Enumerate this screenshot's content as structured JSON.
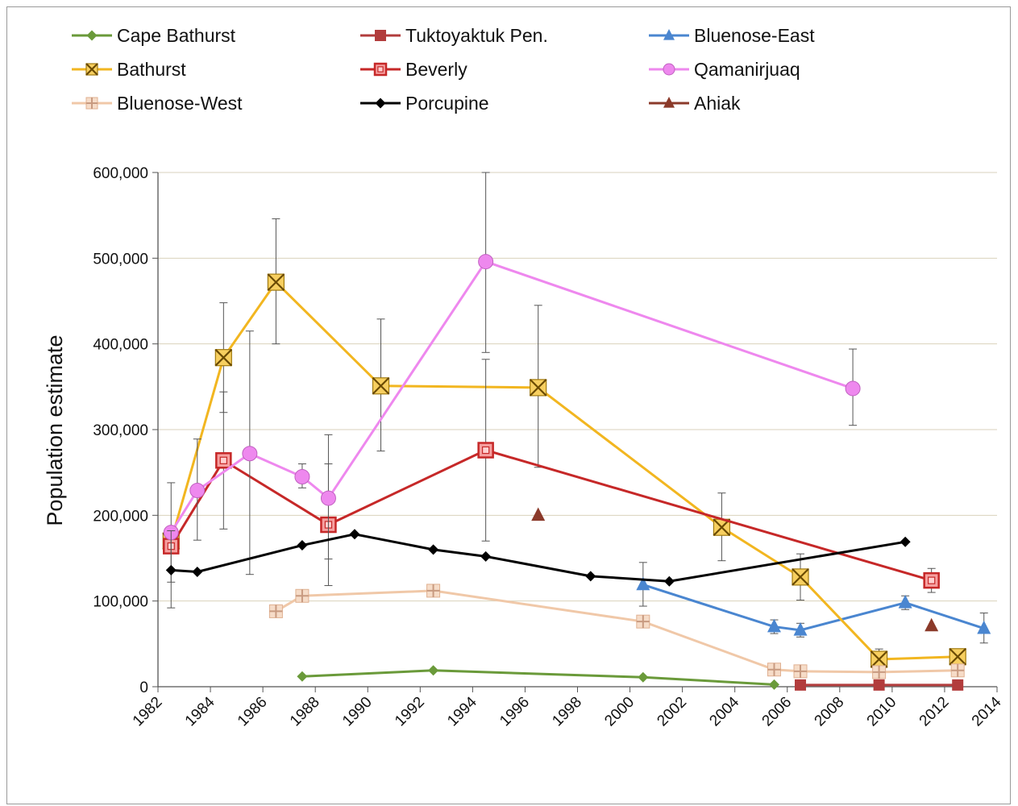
{
  "chart_data": {
    "type": "line",
    "title": "",
    "xlabel": "",
    "ylabel": "Population estimate",
    "xlim": [
      1982,
      2014
    ],
    "ylim": [
      0,
      600000
    ],
    "x_ticks": [
      "1982",
      "1984",
      "1986",
      "1988",
      "1990",
      "1992",
      "1994",
      "1996",
      "1998",
      "2000",
      "2002",
      "2004",
      "2006",
      "2008",
      "2010",
      "2012",
      "2014"
    ],
    "y_ticks": [
      "0",
      "100,000",
      "200,000",
      "300,000",
      "400,000",
      "500,000",
      "600,000"
    ],
    "grid": "horizontal",
    "legend_position": "top",
    "series": [
      {
        "name": "Cape Bathurst",
        "color": "#6a9a3a",
        "marker": "diamond",
        "points": [
          [
            1987.5,
            12000,
            null,
            null
          ],
          [
            1992.5,
            19000,
            null,
            null
          ],
          [
            2000.5,
            11000,
            null,
            null
          ],
          [
            2005.5,
            2500,
            null,
            null
          ]
        ]
      },
      {
        "name": "Tuktoyaktuk Pen.",
        "color": "#b23c3c",
        "marker": "square",
        "points": [
          [
            2006.5,
            2000,
            null,
            null
          ],
          [
            2009.5,
            2000,
            null,
            null
          ],
          [
            2012.5,
            2000,
            null,
            null
          ]
        ]
      },
      {
        "name": "Bluenose-East",
        "color": "#4a86d0",
        "marker": "triangle",
        "points": [
          [
            2000.5,
            119000,
            94000,
            145000
          ],
          [
            2005.5,
            70000,
            62000,
            78000
          ],
          [
            2006.5,
            66000,
            58000,
            74000
          ],
          [
            2010.5,
            98000,
            90000,
            106000
          ],
          [
            2013.5,
            68000,
            51000,
            86000
          ]
        ]
      },
      {
        "name": "Bathurst",
        "color": "#f2b620",
        "marker": "x-square",
        "points": [
          [
            1982.5,
            170000,
            null,
            null
          ],
          [
            1984.5,
            384000,
            320000,
            448000
          ],
          [
            1986.5,
            472000,
            400000,
            546000
          ],
          [
            1990.5,
            351000,
            275000,
            429000
          ],
          [
            1996.5,
            349000,
            256000,
            445000
          ],
          [
            2003.5,
            186000,
            147000,
            226000
          ],
          [
            2006.5,
            128000,
            101000,
            155000
          ],
          [
            2009.5,
            32000,
            20000,
            44000
          ],
          [
            2012.5,
            35000,
            30000,
            40000
          ]
        ]
      },
      {
        "name": "Beverly",
        "color": "#c62828",
        "marker": "square-hollow",
        "points": [
          [
            1982.5,
            164000,
            null,
            null
          ],
          [
            1984.5,
            264000,
            184000,
            344000
          ],
          [
            1988.5,
            189000,
            118000,
            260000
          ],
          [
            1994.5,
            276000,
            170000,
            382000
          ],
          [
            2011.5,
            124000,
            110000,
            138000
          ]
        ]
      },
      {
        "name": "Qamanirjuaq",
        "color": "#ee88ee",
        "marker": "circle",
        "points": [
          [
            1982.5,
            180000,
            122000,
            238000
          ],
          [
            1983.5,
            229000,
            171000,
            289000
          ],
          [
            1985.5,
            272000,
            131000,
            415000
          ],
          [
            1987.5,
            245000,
            232000,
            260000
          ],
          [
            1988.5,
            220000,
            149000,
            294000
          ],
          [
            1994.5,
            496000,
            390000,
            600000
          ],
          [
            2008.5,
            348000,
            305000,
            394000
          ]
        ]
      },
      {
        "name": "Bluenose-West",
        "color": "#f0c8a8",
        "marker": "plus",
        "points": [
          [
            1986.5,
            88000,
            null,
            null
          ],
          [
            1987.5,
            106000,
            null,
            null
          ],
          [
            1992.5,
            112000,
            null,
            null
          ],
          [
            2000.5,
            76000,
            null,
            null
          ],
          [
            2005.5,
            20000,
            null,
            null
          ],
          [
            2006.5,
            18000,
            null,
            null
          ],
          [
            2009.5,
            17000,
            null,
            null
          ],
          [
            2012.5,
            19000,
            null,
            null
          ]
        ]
      },
      {
        "name": "Porcupine",
        "color": "#000000",
        "marker": "diamond",
        "points": [
          [
            1982.5,
            136000,
            92000,
            182000
          ],
          [
            1983.5,
            134000,
            null,
            null
          ],
          [
            1987.5,
            165000,
            null,
            null
          ],
          [
            1989.5,
            178000,
            null,
            null
          ],
          [
            1992.5,
            160000,
            null,
            null
          ],
          [
            1994.5,
            152000,
            null,
            null
          ],
          [
            1998.5,
            129000,
            null,
            null
          ],
          [
            2001.5,
            123000,
            null,
            null
          ],
          [
            2010.5,
            169000,
            null,
            null
          ]
        ]
      },
      {
        "name": "Ahiak",
        "color": "#8b3a2a",
        "marker": "triangle",
        "connect": false,
        "points": [
          [
            1996.5,
            200000,
            null,
            null
          ],
          [
            2011.5,
            71000,
            null,
            null
          ]
        ]
      }
    ]
  }
}
